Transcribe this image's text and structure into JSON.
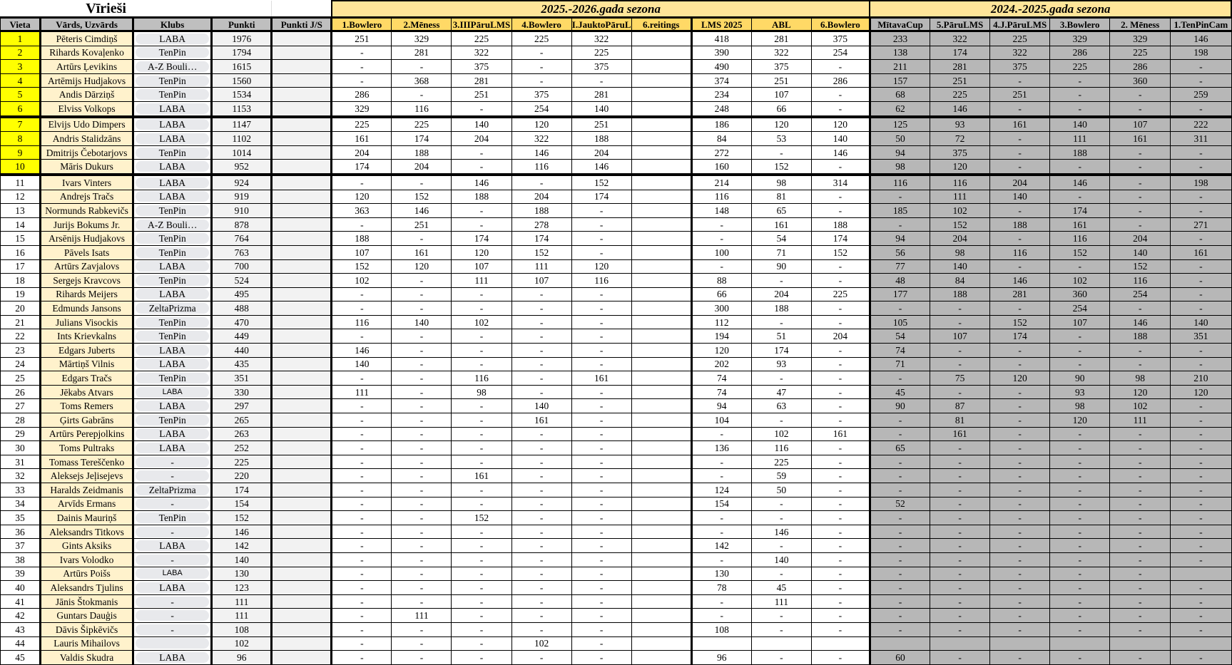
{
  "sheet_title": "Vīrieši",
  "seasons": {
    "current": "2025.-2026.gada sezona",
    "previous": "2024.-2025.gada sezona"
  },
  "columns": {
    "place": "Vieta",
    "name": "Vārds, Uzvārds",
    "club": "Klubs",
    "points": "Punkti",
    "points_js": "Punkti J/S",
    "s2025": [
      "1.Bowlero",
      "2.Mēness",
      "3.IIIPāruLMS",
      "4.Bowlero",
      "I.JauktoPāruL",
      "6.reitings",
      "LMS 2025",
      "ABL",
      "6.Bowlero"
    ],
    "s2024": [
      "MītavaCup",
      "5.PāruLMS",
      "4.J.PāruLMS",
      "3.Bowlero",
      "2. Mēness",
      "1.TenPinCam"
    ]
  },
  "colors": {
    "highlight_place": "#ffff00",
    "name_bg": "#fff2cc",
    "season_header": "#ffe599",
    "current_col_header": "#ffd966",
    "previous_season": "#b7b7b7"
  },
  "rows": [
    {
      "place": "1",
      "name": "Pēteris Cimdiņš",
      "club": "LABA",
      "points": "1976",
      "points_js": "",
      "s2025": [
        "251",
        "329",
        "225",
        "225",
        "322",
        "",
        "418",
        "281",
        "375"
      ],
      "s2024": [
        "233",
        "322",
        "225",
        "329",
        "329",
        "146"
      ]
    },
    {
      "place": "2",
      "name": "Rihards Kovaļenko",
      "club": "TenPin",
      "points": "1794",
      "points_js": "",
      "s2025": [
        "-",
        "281",
        "322",
        "-",
        "225",
        "",
        "390",
        "322",
        "254"
      ],
      "s2024": [
        "138",
        "174",
        "322",
        "286",
        "225",
        "198"
      ]
    },
    {
      "place": "3",
      "name": "Artūrs Ļevikins",
      "club": "A-Z Bouli…",
      "points": "1615",
      "points_js": "",
      "s2025": [
        "-",
        "-",
        "375",
        "-",
        "375",
        "",
        "490",
        "375",
        "-"
      ],
      "s2024": [
        "211",
        "281",
        "375",
        "225",
        "286",
        "-"
      ]
    },
    {
      "place": "4",
      "name": "Artēmijs Hudjakovs",
      "club": "TenPin",
      "points": "1560",
      "points_js": "",
      "s2025": [
        "-",
        "368",
        "281",
        "-",
        "-",
        "",
        "374",
        "251",
        "286"
      ],
      "s2024": [
        "157",
        "251",
        "-",
        "-",
        "360",
        "-"
      ]
    },
    {
      "place": "5",
      "name": "Andis Dārziņš",
      "club": "TenPin",
      "points": "1534",
      "points_js": "",
      "s2025": [
        "286",
        "-",
        "251",
        "375",
        "281",
        "",
        "234",
        "107",
        "-"
      ],
      "s2024": [
        "68",
        "225",
        "251",
        "-",
        "-",
        "259"
      ]
    },
    {
      "place": "6",
      "name": "Elviss Volkops",
      "club": "LABA",
      "points": "1153",
      "points_js": "",
      "s2025": [
        "329",
        "116",
        "-",
        "254",
        "140",
        "",
        "248",
        "66",
        "-"
      ],
      "s2024": [
        "62",
        "146",
        "-",
        "-",
        "-",
        "-"
      ]
    },
    {
      "place": "7",
      "name": "Elvijs Udo Dimpers",
      "club": "LABA",
      "points": "1147",
      "points_js": "",
      "s2025": [
        "225",
        "225",
        "140",
        "120",
        "251",
        "",
        "186",
        "120",
        "120"
      ],
      "s2024": [
        "125",
        "93",
        "161",
        "140",
        "107",
        "222"
      ]
    },
    {
      "place": "8",
      "name": "Andris Stalidzāns",
      "club": "LABA",
      "points": "1102",
      "points_js": "",
      "s2025": [
        "161",
        "174",
        "204",
        "322",
        "188",
        "",
        "84",
        "53",
        "140"
      ],
      "s2024": [
        "50",
        "72",
        "-",
        "111",
        "161",
        "311"
      ]
    },
    {
      "place": "9",
      "name": "Dmitrijs Čebotarjovs",
      "club": "TenPin",
      "points": "1014",
      "points_js": "",
      "s2025": [
        "204",
        "188",
        "-",
        "146",
        "204",
        "",
        "272",
        "-",
        "146"
      ],
      "s2024": [
        "94",
        "375",
        "-",
        "188",
        "-",
        "-"
      ]
    },
    {
      "place": "10",
      "name": "Māris Dukurs",
      "club": "LABA",
      "points": "952",
      "points_js": "",
      "s2025": [
        "174",
        "204",
        "-",
        "116",
        "146",
        "",
        "160",
        "152",
        "-"
      ],
      "s2024": [
        "98",
        "120",
        "-",
        "-",
        "-",
        "-"
      ]
    },
    {
      "place": "11",
      "name": "Ivars Vinters",
      "club": "LABA",
      "points": "924",
      "points_js": "",
      "s2025": [
        "-",
        "-",
        "146",
        "-",
        "152",
        "",
        "214",
        "98",
        "314"
      ],
      "s2024": [
        "116",
        "116",
        "204",
        "146",
        "-",
        "198"
      ]
    },
    {
      "place": "12",
      "name": "Andrejs Tračs",
      "club": "LABA",
      "points": "919",
      "points_js": "",
      "s2025": [
        "120",
        "152",
        "188",
        "204",
        "174",
        "",
        "116",
        "81",
        "-"
      ],
      "s2024": [
        "-",
        "111",
        "140",
        "-",
        "-",
        "-"
      ]
    },
    {
      "place": "13",
      "name": "Normunds Rabkevičs",
      "club": "TenPin",
      "points": "910",
      "points_js": "",
      "s2025": [
        "363",
        "146",
        "-",
        "188",
        "-",
        "",
        "148",
        "65",
        "-"
      ],
      "s2024": [
        "185",
        "102",
        "-",
        "174",
        "-",
        "-"
      ]
    },
    {
      "place": "14",
      "name": "Jurijs Bokums Jr.",
      "club": "A-Z Bouli…",
      "points": "878",
      "points_js": "",
      "s2025": [
        "-",
        "251",
        "-",
        "278",
        "-",
        "",
        "-",
        "161",
        "188"
      ],
      "s2024": [
        "-",
        "152",
        "188",
        "161",
        "-",
        "271"
      ]
    },
    {
      "place": "15",
      "name": "Arsēnijs Hudjakovs",
      "club": "TenPin",
      "points": "764",
      "points_js": "",
      "s2025": [
        "188",
        "-",
        "174",
        "174",
        "-",
        "",
        "-",
        "54",
        "174"
      ],
      "s2024": [
        "94",
        "204",
        "-",
        "116",
        "204",
        "-"
      ]
    },
    {
      "place": "16",
      "name": "Pāvels Isats",
      "club": "TenPin",
      "points": "763",
      "points_js": "",
      "s2025": [
        "107",
        "161",
        "120",
        "152",
        "-",
        "",
        "100",
        "71",
        "152"
      ],
      "s2024": [
        "56",
        "98",
        "116",
        "152",
        "140",
        "161"
      ]
    },
    {
      "place": "17",
      "name": "Artūrs Zavjalovs",
      "club": "LABA",
      "points": "700",
      "points_js": "",
      "s2025": [
        "152",
        "120",
        "107",
        "111",
        "120",
        "",
        "-",
        "90",
        "-"
      ],
      "s2024": [
        "77",
        "140",
        "-",
        "-",
        "152",
        "-"
      ]
    },
    {
      "place": "18",
      "name": "Sergejs Kravcovs",
      "club": "TenPin",
      "points": "524",
      "points_js": "",
      "s2025": [
        "102",
        "-",
        "111",
        "107",
        "116",
        "",
        "88",
        "-",
        "-"
      ],
      "s2024": [
        "48",
        "84",
        "146",
        "102",
        "116",
        "-"
      ]
    },
    {
      "place": "19",
      "name": "Rihards Meijers",
      "club": "LABA",
      "points": "495",
      "points_js": "",
      "s2025": [
        "-",
        "-",
        "-",
        "-",
        "-",
        "",
        "66",
        "204",
        "225"
      ],
      "s2024": [
        "177",
        "188",
        "281",
        "360",
        "254",
        "-"
      ]
    },
    {
      "place": "20",
      "name": "Edmunds Jansons",
      "club": "ZeltaPrizma",
      "points": "488",
      "points_js": "",
      "s2025": [
        "-",
        "-",
        "-",
        "-",
        "-",
        "",
        "300",
        "188",
        "-"
      ],
      "s2024": [
        "-",
        "-",
        "-",
        "254",
        "-",
        "-"
      ]
    },
    {
      "place": "21",
      "name": "Julians Visockis",
      "club": "TenPin",
      "points": "470",
      "points_js": "",
      "s2025": [
        "116",
        "140",
        "102",
        "-",
        "-",
        "",
        "112",
        "-",
        "-"
      ],
      "s2024": [
        "105",
        "-",
        "152",
        "107",
        "146",
        "140"
      ]
    },
    {
      "place": "22",
      "name": "Ints Krievkalns",
      "club": "TenPin",
      "points": "449",
      "points_js": "",
      "s2025": [
        "-",
        "-",
        "-",
        "-",
        "-",
        "",
        "194",
        "51",
        "204"
      ],
      "s2024": [
        "54",
        "107",
        "174",
        "-",
        "188",
        "351"
      ]
    },
    {
      "place": "23",
      "name": "Edgars Juberts",
      "club": "LABA",
      "points": "440",
      "points_js": "",
      "s2025": [
        "146",
        "-",
        "-",
        "-",
        "-",
        "",
        "120",
        "174",
        "-"
      ],
      "s2024": [
        "74",
        "-",
        "-",
        "-",
        "-",
        "-"
      ]
    },
    {
      "place": "24",
      "name": "Mārtiņš Vilnis",
      "club": "LABA",
      "points": "435",
      "points_js": "",
      "s2025": [
        "140",
        "-",
        "-",
        "-",
        "-",
        "",
        "202",
        "93",
        "-"
      ],
      "s2024": [
        "71",
        "-",
        "-",
        "-",
        "-",
        "-"
      ]
    },
    {
      "place": "25",
      "name": "Edgars Tračs",
      "club": "TenPin",
      "points": "351",
      "points_js": "",
      "s2025": [
        "-",
        "-",
        "116",
        "-",
        "161",
        "",
        "74",
        "-",
        "-"
      ],
      "s2024": [
        "-",
        "75",
        "120",
        "90",
        "98",
        "210"
      ]
    },
    {
      "place": "26",
      "name": "Jēkabs Atvars",
      "club": "LABA",
      "club_sans": true,
      "points": "330",
      "points_js": "",
      "s2025": [
        "111",
        "-",
        "98",
        "-",
        "-",
        "",
        "74",
        "47",
        "-"
      ],
      "s2024": [
        "45",
        "-",
        "-",
        "93",
        "120",
        "120"
      ]
    },
    {
      "place": "27",
      "name": "Toms Remers",
      "club": "LABA",
      "points": "297",
      "points_js": "",
      "s2025": [
        "-",
        "-",
        "-",
        "140",
        "-",
        "",
        "94",
        "63",
        "-"
      ],
      "s2024": [
        "90",
        "87",
        "-",
        "98",
        "102",
        "-"
      ]
    },
    {
      "place": "28",
      "name": "Ģirts Gabrāns",
      "club": "TenPin",
      "points": "265",
      "points_js": "",
      "s2025": [
        "-",
        "-",
        "-",
        "161",
        "-",
        "",
        "104",
        "-",
        "-"
      ],
      "s2024": [
        "-",
        "81",
        "-",
        "120",
        "111",
        "-"
      ]
    },
    {
      "place": "29",
      "name": "Artūrs Perepjolkins",
      "club": "LABA",
      "points": "263",
      "points_js": "",
      "s2025": [
        "-",
        "-",
        "-",
        "-",
        "-",
        "",
        "-",
        "102",
        "161"
      ],
      "s2024": [
        "-",
        "161",
        "-",
        "-",
        "-",
        "-"
      ]
    },
    {
      "place": "30",
      "name": "Toms Pultraks",
      "club": "LABA",
      "points": "252",
      "points_js": "",
      "s2025": [
        "-",
        "-",
        "-",
        "-",
        "-",
        "",
        "136",
        "116",
        "-"
      ],
      "s2024": [
        "65",
        "-",
        "-",
        "-",
        "-",
        "-"
      ]
    },
    {
      "place": "31",
      "name": "Tomass Tereščenko",
      "club": "-",
      "points": "225",
      "points_js": "",
      "s2025": [
        "-",
        "-",
        "-",
        "-",
        "-",
        "",
        "-",
        "225",
        "-"
      ],
      "s2024": [
        "-",
        "-",
        "-",
        "-",
        "-",
        "-"
      ]
    },
    {
      "place": "32",
      "name": "Aleksejs Jeļisejevs",
      "club": "-",
      "points": "220",
      "points_js": "",
      "s2025": [
        "-",
        "-",
        "161",
        "-",
        "-",
        "",
        "-",
        "59",
        "-"
      ],
      "s2024": [
        "-",
        "-",
        "-",
        "-",
        "-",
        "-"
      ]
    },
    {
      "place": "33",
      "name": "Haralds Zeidmanis",
      "club": "ZeltaPrizma",
      "points": "174",
      "points_js": "",
      "s2025": [
        "-",
        "-",
        "-",
        "-",
        "-",
        "",
        "124",
        "50",
        "-"
      ],
      "s2024": [
        "-",
        "-",
        "-",
        "-",
        "-",
        "-"
      ]
    },
    {
      "place": "34",
      "name": "Arvīds Ermans",
      "club": "-",
      "points": "154",
      "points_js": "",
      "s2025": [
        "-",
        "-",
        "-",
        "-",
        "-",
        "",
        "154",
        "-",
        "-"
      ],
      "s2024": [
        "52",
        "-",
        "-",
        "-",
        "-",
        "-"
      ]
    },
    {
      "place": "35",
      "name": "Dainis Mauriņš",
      "club": "TenPin",
      "points": "152",
      "points_js": "",
      "s2025": [
        "-",
        "-",
        "152",
        "-",
        "-",
        "",
        "-",
        "-",
        "-"
      ],
      "s2024": [
        "-",
        "-",
        "-",
        "-",
        "-",
        "-"
      ]
    },
    {
      "place": "36",
      "name": "Aleksandrs Titkovs",
      "club": "-",
      "points": "146",
      "points_js": "",
      "s2025": [
        "-",
        "-",
        "-",
        "-",
        "-",
        "",
        "-",
        "146",
        "-"
      ],
      "s2024": [
        "-",
        "-",
        "-",
        "-",
        "-",
        "-"
      ]
    },
    {
      "place": "37",
      "name": "Gints Aksiks",
      "club": "LABA",
      "points": "142",
      "points_js": "",
      "s2025": [
        "-",
        "-",
        "-",
        "-",
        "-",
        "",
        "142",
        "-",
        "-"
      ],
      "s2024": [
        "-",
        "-",
        "-",
        "-",
        "-",
        "-"
      ]
    },
    {
      "place": "38",
      "name": "Ivars Volodko",
      "club": "-",
      "points": "140",
      "points_js": "",
      "s2025": [
        "-",
        "-",
        "-",
        "-",
        "-",
        "",
        "-",
        "140",
        "-"
      ],
      "s2024": [
        "-",
        "-",
        "-",
        "-",
        "-",
        "-"
      ]
    },
    {
      "place": "39",
      "name": "Artūrs Poišs",
      "club": "LABA",
      "club_sans": true,
      "points": "130",
      "points_js": "",
      "s2025": [
        "-",
        "-",
        "-",
        "-",
        "-",
        "",
        "130",
        "-",
        "-"
      ],
      "s2024": [
        "-",
        "-",
        "-",
        "-",
        "-",
        ""
      ]
    },
    {
      "place": "40",
      "name": "Aleksandrs Tjulins",
      "club": "LABA",
      "points": "123",
      "points_js": "",
      "s2025": [
        "-",
        "-",
        "-",
        "-",
        "-",
        "",
        "78",
        "45",
        "-"
      ],
      "s2024": [
        "-",
        "-",
        "-",
        "-",
        "-",
        "-"
      ]
    },
    {
      "place": "41",
      "name": "Jānis Štokmanis",
      "club": "-",
      "points": "111",
      "points_js": "",
      "s2025": [
        "-",
        "-",
        "-",
        "-",
        "-",
        "",
        "-",
        "111",
        "-"
      ],
      "s2024": [
        "-",
        "-",
        "-",
        "-",
        "-",
        "-"
      ]
    },
    {
      "place": "42",
      "name": "Guntars Dauģis",
      "club": "-",
      "points": "111",
      "points_js": "",
      "s2025": [
        "-",
        "111",
        "-",
        "-",
        "-",
        "",
        "-",
        "-",
        "-"
      ],
      "s2024": [
        "-",
        "-",
        "-",
        "-",
        "-",
        "-"
      ]
    },
    {
      "place": "43",
      "name": "Dāvis Šipkēvičs",
      "club": "-",
      "points": "108",
      "points_js": "",
      "s2025": [
        "-",
        "-",
        "-",
        "-",
        "-",
        "",
        "108",
        "-",
        "-"
      ],
      "s2024": [
        "-",
        "-",
        "-",
        "-",
        "-",
        "-"
      ]
    },
    {
      "place": "44",
      "name": "Lauris Mihailovs",
      "club": "",
      "points": "102",
      "points_js": "",
      "s2025": [
        "-",
        "-",
        "-",
        "102",
        "-",
        "",
        "",
        "",
        ""
      ],
      "s2024": [
        "",
        "",
        "",
        "",
        "",
        ""
      ]
    },
    {
      "place": "45",
      "name": "Valdis Skudra",
      "club": "LABA",
      "points": "96",
      "points_js": "",
      "s2025": [
        "-",
        "-",
        "-",
        "-",
        "-",
        "",
        "96",
        "-",
        "-"
      ],
      "s2024": [
        "60",
        "-",
        "-",
        "-",
        "-",
        "-"
      ]
    }
  ]
}
